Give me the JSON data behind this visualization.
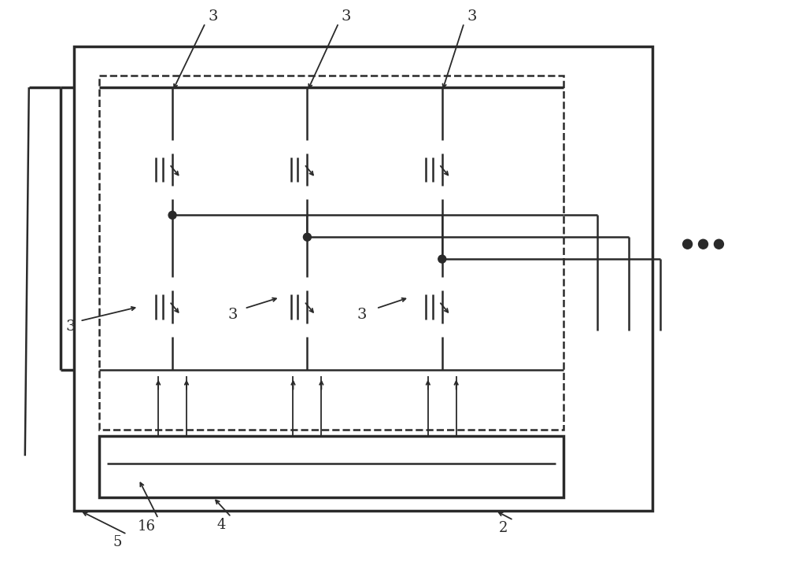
{
  "bg_color": "#ffffff",
  "line_color": "#2a2a2a",
  "fig_width": 10.0,
  "fig_height": 7.37,
  "dpi": 100
}
